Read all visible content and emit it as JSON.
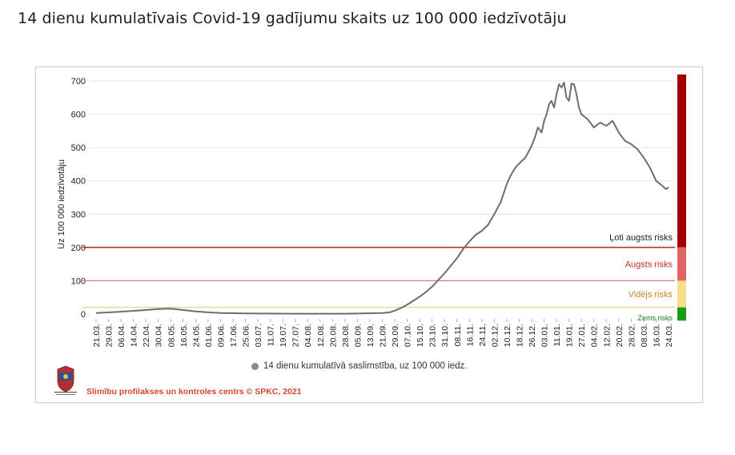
{
  "page": {
    "title": "14 dienu kumulatīvais Covid-19 gadījumu skaits uz 100 000 iedzīvotāju",
    "source": "Slimību profilakses un kontroles centrs © SPKC, 2021"
  },
  "chart_data": {
    "type": "line",
    "title": "",
    "ylabel": "Uz 100 000 iedzīvotāju",
    "xlabel": "",
    "ylim": [
      0,
      700
    ],
    "yticks": [
      0,
      100,
      200,
      300,
      400,
      500,
      600,
      700
    ],
    "grid": true,
    "legend": "bottom-center",
    "x_tick_labels": [
      "21.03.",
      "29.03.",
      "06.04.",
      "14.04.",
      "22.04.",
      "30.04.",
      "08.05.",
      "16.05.",
      "24.05.",
      "01.06.",
      "09.06.",
      "17.06.",
      "25.06.",
      "03.07.",
      "11.07.",
      "19.07.",
      "27.07.",
      "04.08.",
      "12.08.",
      "20.08.",
      "28.08.",
      "05.09.",
      "13.09.",
      "21.09.",
      "29.09.",
      "07.10.",
      "15.10.",
      "23.10.",
      "31.10.",
      "08.11.",
      "16.11.",
      "24.11.",
      "02.12.",
      "10.12.",
      "18.12.",
      "26.12.",
      "03.01.",
      "11.01.",
      "19.01.",
      "27.01.",
      "04.02.",
      "12.02.",
      "20.02.",
      "28.02.",
      "08.03.",
      "16.03.",
      "24.03."
    ],
    "series": [
      {
        "name": "14 dienu kumulatīvā saslimstība, uz 100 000 iedz.",
        "color": "#6e6e6e",
        "points": [
          [
            0,
            3
          ],
          [
            2,
            7
          ],
          [
            4,
            12
          ],
          [
            5,
            15
          ],
          [
            6,
            16
          ],
          [
            7,
            12
          ],
          [
            8,
            8
          ],
          [
            9,
            5
          ],
          [
            10,
            3
          ],
          [
            12,
            2
          ],
          [
            16,
            1
          ],
          [
            20,
            1
          ],
          [
            23,
            3
          ],
          [
            23.6,
            5
          ],
          [
            24,
            10
          ],
          [
            24.5,
            18
          ],
          [
            25,
            28
          ],
          [
            25.5,
            40
          ],
          [
            26,
            52
          ],
          [
            26.5,
            66
          ],
          [
            27,
            82
          ],
          [
            27.5,
            102
          ],
          [
            28,
            122
          ],
          [
            28.5,
            145
          ],
          [
            29,
            168
          ],
          [
            29.5,
            195
          ],
          [
            30,
            218
          ],
          [
            30.5,
            238
          ],
          [
            31,
            250
          ],
          [
            31.5,
            268
          ],
          [
            32,
            300
          ],
          [
            32.5,
            335
          ],
          [
            33,
            390
          ],
          [
            33.3,
            415
          ],
          [
            33.7,
            440
          ],
          [
            34,
            452
          ],
          [
            34.5,
            470
          ],
          [
            35,
            505
          ],
          [
            35.3,
            535
          ],
          [
            35.5,
            560
          ],
          [
            35.8,
            545
          ],
          [
            36,
            580
          ],
          [
            36.2,
            600
          ],
          [
            36.4,
            630
          ],
          [
            36.6,
            640
          ],
          [
            36.8,
            620
          ],
          [
            37,
            660
          ],
          [
            37.2,
            690
          ],
          [
            37.4,
            680
          ],
          [
            37.6,
            695
          ],
          [
            37.8,
            650
          ],
          [
            38,
            640
          ],
          [
            38.2,
            692
          ],
          [
            38.4,
            690
          ],
          [
            38.6,
            660
          ],
          [
            38.8,
            620
          ],
          [
            39,
            600
          ],
          [
            39.5,
            585
          ],
          [
            40,
            560
          ],
          [
            40.5,
            575
          ],
          [
            41,
            565
          ],
          [
            41.5,
            580
          ],
          [
            42,
            545
          ],
          [
            42.5,
            520
          ],
          [
            43,
            510
          ],
          [
            43.5,
            495
          ],
          [
            44,
            470
          ],
          [
            44.5,
            440
          ],
          [
            45,
            400
          ],
          [
            45.5,
            385
          ],
          [
            45.8,
            375
          ],
          [
            46,
            380
          ]
        ]
      }
    ],
    "thresholds": [
      {
        "label": "Ļoti augsts risks",
        "value": 200,
        "color": "#b11414"
      },
      {
        "label": "Augsts risks",
        "value": 100,
        "color": "#e07f7f"
      },
      {
        "label": "Vidējs risks",
        "value": 20,
        "color": "#f2d882"
      },
      {
        "label": "Zems risks",
        "value": 0,
        "color": "#2ba02b"
      }
    ],
    "risk_bands": [
      {
        "label": "Ļoti augsts risks",
        "from": 200,
        "to": 740,
        "color": "#a00000",
        "text_color": "#222222"
      },
      {
        "label": "Augsts risks",
        "from": 100,
        "to": 200,
        "color": "#e06666",
        "text_color": "#cc2a2a"
      },
      {
        "label": "Vidējs risks",
        "from": 20,
        "to": 100,
        "color": "#f5dd8a",
        "text_color": "#c9891e"
      },
      {
        "label": "Zems risks",
        "from": -20,
        "to": 20,
        "color": "#1a9b1a",
        "text_color": "#1a7a1a"
      }
    ]
  }
}
